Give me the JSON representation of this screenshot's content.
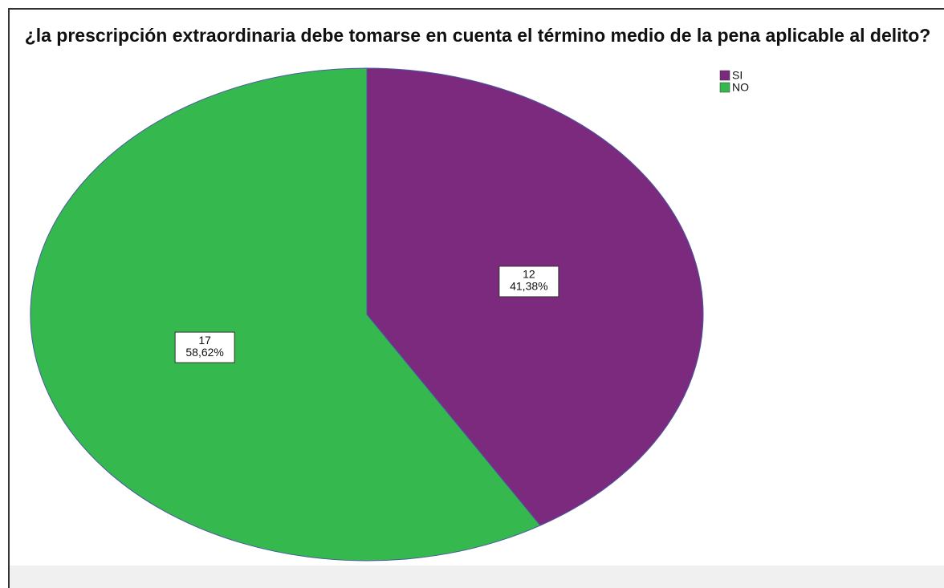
{
  "chart_data": {
    "type": "pie",
    "title": "¿la prescripción extraordinaria debe tomarse en cuenta el término medio de la pena aplicable al delito?",
    "categories": [
      "SI",
      "NO"
    ],
    "values": [
      12,
      17
    ],
    "percentages": [
      41.38,
      58.62
    ],
    "percentage_labels": [
      "41,38%",
      "58,62%"
    ],
    "colors": [
      "#7b2a7e",
      "#35b94f"
    ],
    "legend": "top-right"
  }
}
